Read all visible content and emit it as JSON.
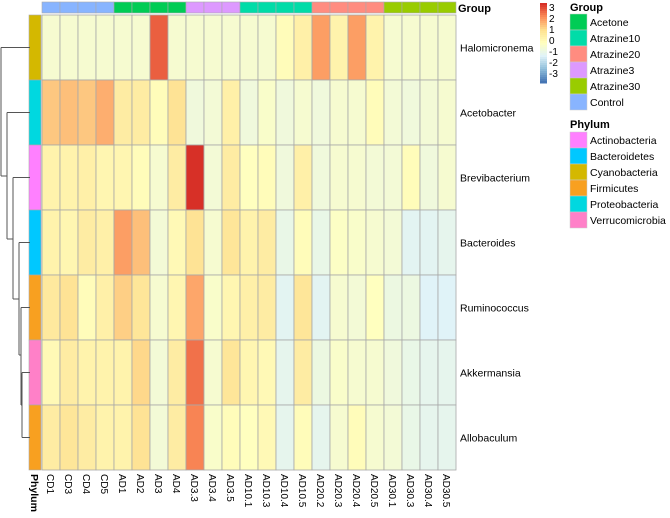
{
  "chart_data": {
    "type": "heatmap",
    "columns": [
      "CD1",
      "CD3",
      "CD4",
      "CD5",
      "AD1",
      "AD2",
      "AD3",
      "AD4",
      "AD3.3",
      "AD3.4",
      "AD3.5",
      "AD10.1",
      "AD10.3",
      "AD10.4",
      "AD10.5",
      "AD20.2",
      "AD20.3",
      "AD20.4",
      "AD20.5",
      "AD30.1",
      "AD30.3",
      "AD30.4",
      "AD30.5"
    ],
    "column_groups": [
      "Control",
      "Control",
      "Control",
      "Control",
      "Acetone",
      "Acetone",
      "Acetone",
      "Acetone",
      "Atrazine3",
      "Atrazine3",
      "Atrazine3",
      "Atrazine10",
      "Atrazine10",
      "Atrazine10",
      "Atrazine10",
      "Atrazine20",
      "Atrazine20",
      "Atrazine20",
      "Atrazine20",
      "Atrazine30",
      "Atrazine30",
      "Atrazine30",
      "Atrazine30"
    ],
    "rows": [
      {
        "name": "Halomicronema",
        "phylum": "Cyanobacteria",
        "values": [
          -0.3,
          -0.3,
          -0.3,
          -0.3,
          -0.3,
          -0.3,
          2.5,
          -0.3,
          -0.3,
          -0.3,
          -0.3,
          -0.3,
          -0.3,
          0.1,
          0.5,
          1.8,
          0.4,
          1.8,
          0.4,
          -0.3,
          -0.3,
          -0.3,
          -0.3
        ]
      },
      {
        "name": "Acetobacter",
        "phylum": "Proteobacteria",
        "values": [
          1.3,
          1.4,
          1.3,
          1.6,
          0.6,
          0.6,
          0.1,
          0.9,
          -0.5,
          -0.4,
          0.5,
          -0.5,
          -0.2,
          -0.5,
          -0.3,
          -0.5,
          -0.3,
          -0.3,
          0.1,
          -0.4,
          -0.5,
          -0.4,
          -0.3
        ]
      },
      {
        "name": "Brevibacterium",
        "phylum": "Actinobacteria",
        "values": [
          0.4,
          0.4,
          0.5,
          0.3,
          0.3,
          0.1,
          -0.3,
          0.6,
          3.0,
          -0.4,
          0.6,
          0.0,
          0.1,
          -0.5,
          0.5,
          -0.5,
          -0.3,
          -0.3,
          -0.4,
          -0.4,
          0.1,
          -0.5,
          -0.3
        ]
      },
      {
        "name": "Bacteroides",
        "phylum": "Bacteroidetes",
        "values": [
          0.4,
          0.3,
          0.6,
          0.5,
          1.8,
          1.4,
          -0.4,
          0.2,
          0.9,
          -0.3,
          0.8,
          0.4,
          0.6,
          -0.7,
          0.1,
          -0.7,
          -0.1,
          -0.2,
          -0.3,
          -0.4,
          -0.9,
          -0.9,
          -0.8
        ]
      },
      {
        "name": "Ruminococcus",
        "phylum": "Firmicutes",
        "values": [
          0.7,
          0.9,
          0.1,
          0.5,
          1.2,
          0.8,
          -0.3,
          0.3,
          1.7,
          -0.2,
          0.3,
          0.5,
          0.6,
          -0.9,
          0.8,
          -0.9,
          -0.3,
          -0.4,
          0.0,
          -0.6,
          -0.6,
          -1.0,
          -1.0
        ]
      },
      {
        "name": "Akkermansia",
        "phylum": "Verrucomicrobia",
        "values": [
          0.2,
          0.6,
          0.4,
          0.4,
          0.4,
          1.1,
          -0.4,
          0.6,
          2.3,
          -0.3,
          0.8,
          0.3,
          0.2,
          -0.8,
          0.6,
          -0.6,
          -0.2,
          -0.3,
          -0.3,
          -0.5,
          -0.7,
          -0.8,
          -0.8
        ]
      },
      {
        "name": "Allobaculum",
        "phylum": "Firmicutes",
        "values": [
          0.6,
          0.8,
          0.6,
          0.4,
          0.4,
          0.9,
          -0.4,
          0.6,
          2.1,
          -0.2,
          0.1,
          0.0,
          0.2,
          -0.8,
          0.1,
          -0.8,
          -0.3,
          0.1,
          -0.3,
          -0.4,
          -0.7,
          -0.8,
          -0.8
        ]
      }
    ],
    "color_scale": {
      "min": -3,
      "max": 3,
      "colors": [
        "#4575b4",
        "#91bfdb",
        "#e0f3f8",
        "#ffffbf",
        "#fee090",
        "#fc8d59",
        "#d73027"
      ],
      "ticks": [
        "3",
        "2",
        "1",
        "0",
        "-1",
        "-2",
        "-3"
      ]
    },
    "column_annotation_title": "Group",
    "row_annotation_title": "Phylum",
    "legend": {
      "group_title": "Group",
      "groups": [
        {
          "name": "Acetone",
          "color": "#00cc55"
        },
        {
          "name": "Atrazine10",
          "color": "#00dca8"
        },
        {
          "name": "Atrazine20",
          "color": "#ff8c80"
        },
        {
          "name": "Atrazine3",
          "color": "#dd99ff"
        },
        {
          "name": "Atrazine30",
          "color": "#99cc00"
        },
        {
          "name": "Control",
          "color": "#88b4ff"
        }
      ],
      "phylum_title": "Phylum",
      "phyla": [
        {
          "name": "Actinobacteria",
          "color": "#ff80ff"
        },
        {
          "name": "Bacteroidetes",
          "color": "#00c8ff"
        },
        {
          "name": "Cyanobacteria",
          "color": "#d4b800"
        },
        {
          "name": "Firmicutes",
          "color": "#f8a020"
        },
        {
          "name": "Proteobacteria",
          "color": "#00d8e0"
        },
        {
          "name": "Verrucomicrobia",
          "color": "#ff80c8"
        }
      ]
    }
  }
}
